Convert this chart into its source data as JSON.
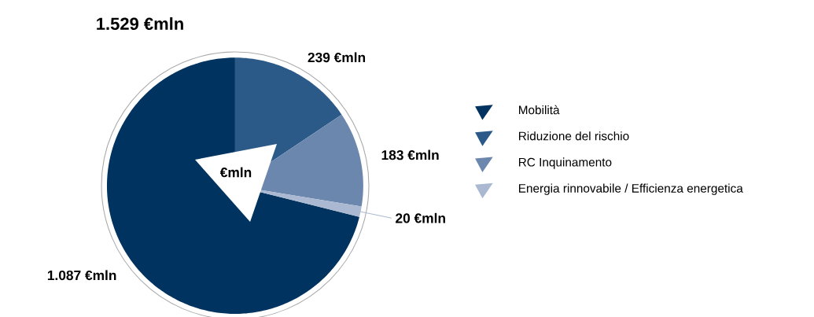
{
  "chart_data": {
    "type": "pie",
    "title": "1.529 €mln",
    "categories": [
      "Mobilità",
      "Riduzione del rischio",
      "RC Inquinamento",
      "Energia rinnovabile / Efficienza energetica"
    ],
    "values": [
      1087,
      239,
      183,
      20
    ],
    "colors": [
      "#003360",
      "#2c5a88",
      "#6b87ae",
      "#aab9d1"
    ],
    "value_labels": [
      "1.087 €mln",
      "239 €mln",
      "183 €mln",
      "20 €mln"
    ],
    "annotations": [
      "€mln"
    ],
    "legend": "right"
  }
}
